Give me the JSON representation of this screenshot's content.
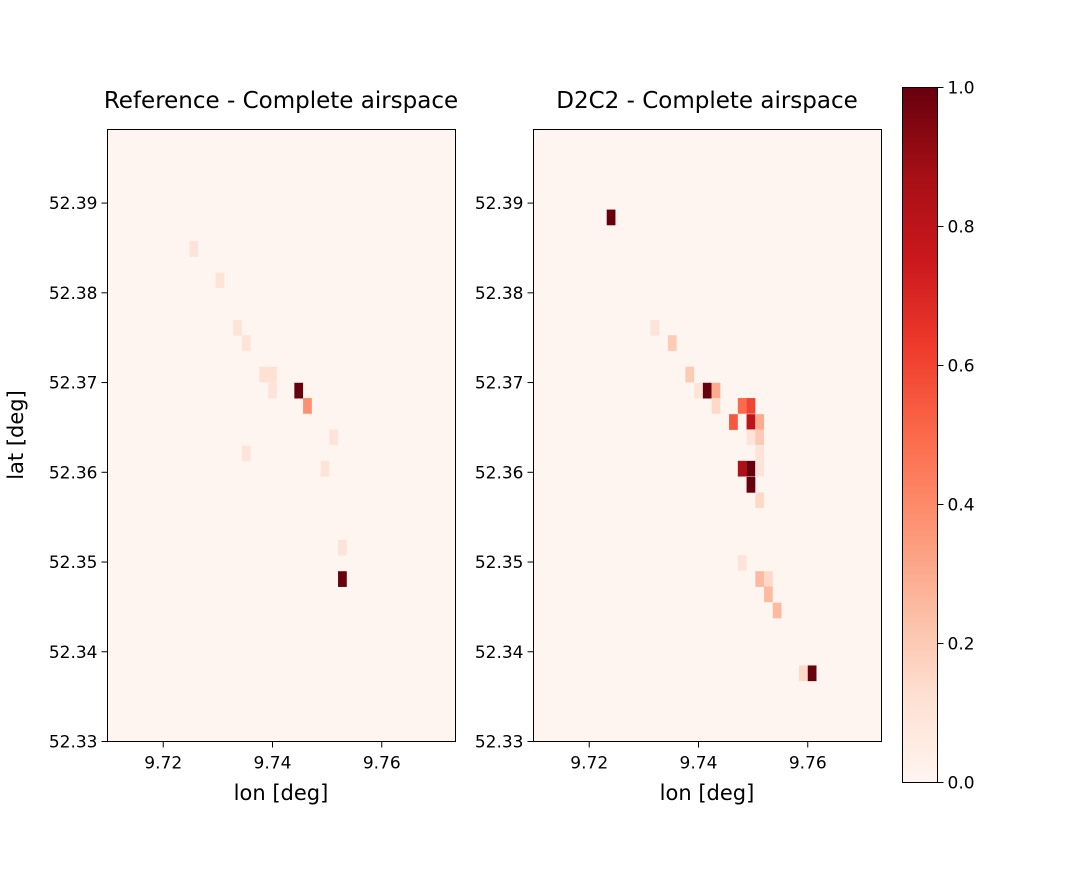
{
  "chart_data": [
    {
      "type": "heatmap",
      "title": "Reference - Complete airspace",
      "xlabel": "lon [deg]",
      "ylabel": "lat [deg]",
      "xlim": [
        9.7098,
        9.7735
      ],
      "ylim": [
        52.33,
        52.3982
      ],
      "xticks": [
        "9.72",
        "9.74",
        "9.76"
      ],
      "yticks": [
        "52.33",
        "52.34",
        "52.35",
        "52.36",
        "52.37",
        "52.38",
        "52.39"
      ],
      "cell_size": {
        "lon": 0.0016,
        "lat": 0.00175
      },
      "cells": [
        {
          "lon": 9.7256,
          "lat": 52.3849,
          "value": 0.1
        },
        {
          "lon": 9.7304,
          "lat": 52.3814,
          "value": 0.1
        },
        {
          "lon": 9.7336,
          "lat": 52.3761,
          "value": 0.1
        },
        {
          "lon": 9.7352,
          "lat": 52.3744,
          "value": 0.1
        },
        {
          "lon": 9.7384,
          "lat": 52.3709,
          "value": 0.12
        },
        {
          "lon": 9.74,
          "lat": 52.3709,
          "value": 0.12
        },
        {
          "lon": 9.74,
          "lat": 52.3691,
          "value": 0.1
        },
        {
          "lon": 9.7448,
          "lat": 52.3691,
          "value": 1.0
        },
        {
          "lon": 9.7464,
          "lat": 52.3674,
          "value": 0.38
        },
        {
          "lon": 9.7512,
          "lat": 52.3639,
          "value": 0.1
        },
        {
          "lon": 9.7352,
          "lat": 52.3621,
          "value": 0.1
        },
        {
          "lon": 9.7496,
          "lat": 52.3604,
          "value": 0.1
        },
        {
          "lon": 9.7528,
          "lat": 52.3516,
          "value": 0.1
        },
        {
          "lon": 9.7528,
          "lat": 52.3481,
          "value": 1.0
        }
      ]
    },
    {
      "type": "heatmap",
      "title": "D2C2 - Complete airspace",
      "xlabel": "lon [deg]",
      "ylabel": "",
      "xlim": [
        9.7098,
        9.7735
      ],
      "ylim": [
        52.33,
        52.3982
      ],
      "xticks": [
        "9.72",
        "9.74",
        "9.76"
      ],
      "yticks": [
        "52.33",
        "52.34",
        "52.35",
        "52.36",
        "52.37",
        "52.38",
        "52.39"
      ],
      "cell_size": {
        "lon": 0.0016,
        "lat": 0.00175
      },
      "cells": [
        {
          "lon": 9.724,
          "lat": 52.3884,
          "value": 1.0
        },
        {
          "lon": 9.732,
          "lat": 52.3761,
          "value": 0.1
        },
        {
          "lon": 9.7352,
          "lat": 52.3744,
          "value": 0.2
        },
        {
          "lon": 9.7384,
          "lat": 52.3709,
          "value": 0.2
        },
        {
          "lon": 9.74,
          "lat": 52.3691,
          "value": 0.1
        },
        {
          "lon": 9.7416,
          "lat": 52.3691,
          "value": 1.0
        },
        {
          "lon": 9.7432,
          "lat": 52.3691,
          "value": 0.3
        },
        {
          "lon": 9.7432,
          "lat": 52.3674,
          "value": 0.15
        },
        {
          "lon": 9.748,
          "lat": 52.3674,
          "value": 0.5
        },
        {
          "lon": 9.7496,
          "lat": 52.3674,
          "value": 0.6
        },
        {
          "lon": 9.7464,
          "lat": 52.3656,
          "value": 0.55
        },
        {
          "lon": 9.7496,
          "lat": 52.3656,
          "value": 0.8
        },
        {
          "lon": 9.7512,
          "lat": 52.3656,
          "value": 0.3
        },
        {
          "lon": 9.7496,
          "lat": 52.3639,
          "value": 0.1
        },
        {
          "lon": 9.7512,
          "lat": 52.3639,
          "value": 0.2
        },
        {
          "lon": 9.7512,
          "lat": 52.3621,
          "value": 0.1
        },
        {
          "lon": 9.748,
          "lat": 52.3604,
          "value": 0.85
        },
        {
          "lon": 9.7496,
          "lat": 52.3604,
          "value": 1.0
        },
        {
          "lon": 9.7512,
          "lat": 52.3604,
          "value": 0.1
        },
        {
          "lon": 9.7496,
          "lat": 52.3586,
          "value": 1.0
        },
        {
          "lon": 9.7512,
          "lat": 52.3569,
          "value": 0.15
        },
        {
          "lon": 9.748,
          "lat": 52.3499,
          "value": 0.1
        },
        {
          "lon": 9.7512,
          "lat": 52.3481,
          "value": 0.25
        },
        {
          "lon": 9.7528,
          "lat": 52.3481,
          "value": 0.15
        },
        {
          "lon": 9.7528,
          "lat": 52.3464,
          "value": 0.25
        },
        {
          "lon": 9.7544,
          "lat": 52.3446,
          "value": 0.25
        },
        {
          "lon": 9.7592,
          "lat": 52.3376,
          "value": 0.15
        },
        {
          "lon": 9.7608,
          "lat": 52.3376,
          "value": 1.0
        }
      ]
    }
  ],
  "colorbar": {
    "colormap": "Reds",
    "range": [
      0.0,
      1.0
    ],
    "ticks": [
      "0.0",
      "0.2",
      "0.4",
      "0.6",
      "0.8",
      "1.0"
    ]
  },
  "colors": {
    "low": "#fff5f0",
    "high": "#67000d",
    "axes": "#000000"
  }
}
